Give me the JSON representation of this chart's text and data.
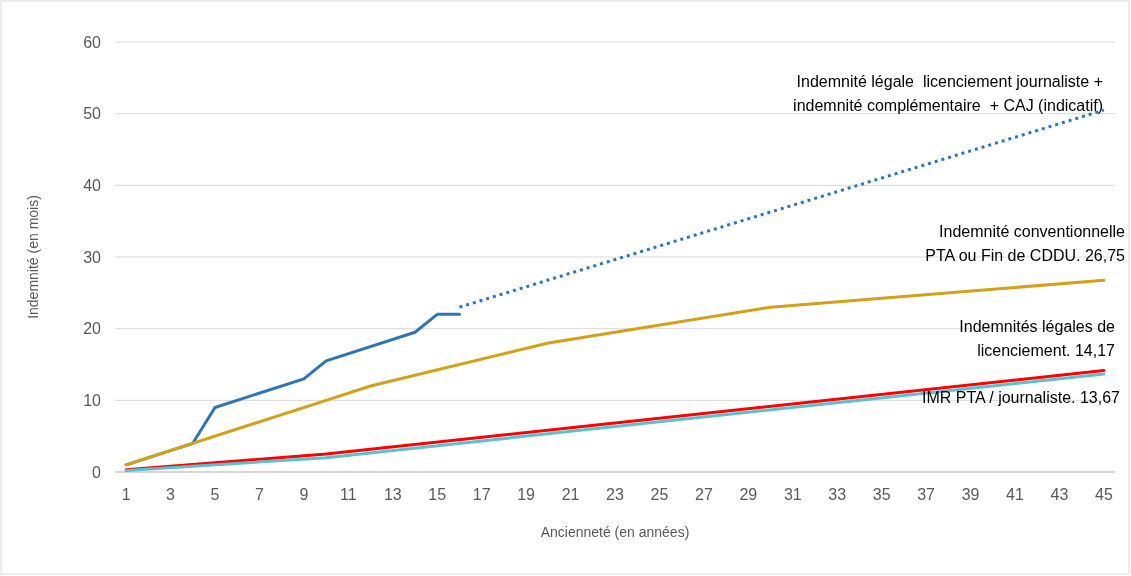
{
  "chart_data": {
    "type": "line",
    "xlabel": "Ancienneté (en années)",
    "ylabel": "Indemnité (en mois)",
    "xlim": [
      0.5,
      45.5
    ],
    "xticks": [
      1,
      3,
      5,
      7,
      9,
      11,
      13,
      15,
      17,
      19,
      21,
      23,
      25,
      27,
      29,
      31,
      33,
      35,
      37,
      39,
      41,
      43,
      45
    ],
    "ylim": [
      0,
      60
    ],
    "yticks": [
      0,
      10,
      20,
      30,
      40,
      50,
      60
    ],
    "grid": "y",
    "series": [
      {
        "color": "#2e75b6",
        "x": [
          1,
          4,
          5,
          9,
          10,
          14,
          15,
          16
        ],
        "values": [
          1,
          4,
          9,
          13,
          15.5,
          19.5,
          22,
          22
        ]
      },
      {
        "name": "Indemnité légale  licenciement journaliste +\nindemnité complémentaire  + CAJ (indicatif)",
        "color": "#2e75b6",
        "line_style": "dotted",
        "x": [
          16,
          45
        ],
        "values": [
          23,
          50.5
        ]
      },
      {
        "name": "Indemnité conventionnelle\nPTA ou Fin de CDDU. 26,75",
        "color": "#d4a017",
        "x": [
          1,
          10,
          12,
          20,
          30,
          45
        ],
        "values": [
          1,
          10,
          12,
          18,
          23,
          26.75
        ]
      },
      {
        "name": "Indemnités légales de\nlicenciement. 14,17",
        "color": "#ff0000",
        "x": [
          1,
          10,
          45
        ],
        "values": [
          0.3,
          2.5,
          14.17
        ]
      },
      {
        "name": "IMR PTA / journaliste. 13,67",
        "color": "#5bc0cf",
        "x": [
          1,
          10,
          45
        ],
        "values": [
          0.2,
          2,
          13.67
        ]
      }
    ]
  }
}
